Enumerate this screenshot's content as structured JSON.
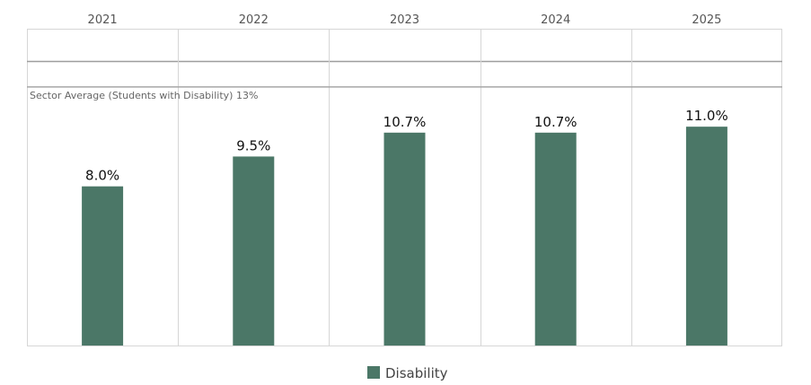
{
  "chart_data": {
    "type": "bar",
    "categories": [
      "2021",
      "2022",
      "2023",
      "2024",
      "2025"
    ],
    "series": [
      {
        "name": "Disability",
        "values": [
          8.0,
          9.5,
          10.7,
          10.7,
          11.0
        ],
        "labels": [
          "8.0%",
          "9.5%",
          "10.7%",
          "10.7%",
          "11.0%"
        ],
        "color": "#4b7767"
      }
    ],
    "reference_line": {
      "label": "Sector Average (Students with Disability) 13%",
      "value": 13,
      "color": "#a6a6a6"
    },
    "ylim": [
      0,
      14.3
    ],
    "legend": {
      "position": "bottom-center",
      "items": [
        {
          "label": "Disability",
          "color": "#4b7767"
        }
      ]
    },
    "grid": {
      "vertical_dividers": true,
      "horizontal": false
    },
    "colors": {
      "bar": "#4b7767",
      "border": "#d6d6d6",
      "reference": "#a6a6a6"
    }
  }
}
